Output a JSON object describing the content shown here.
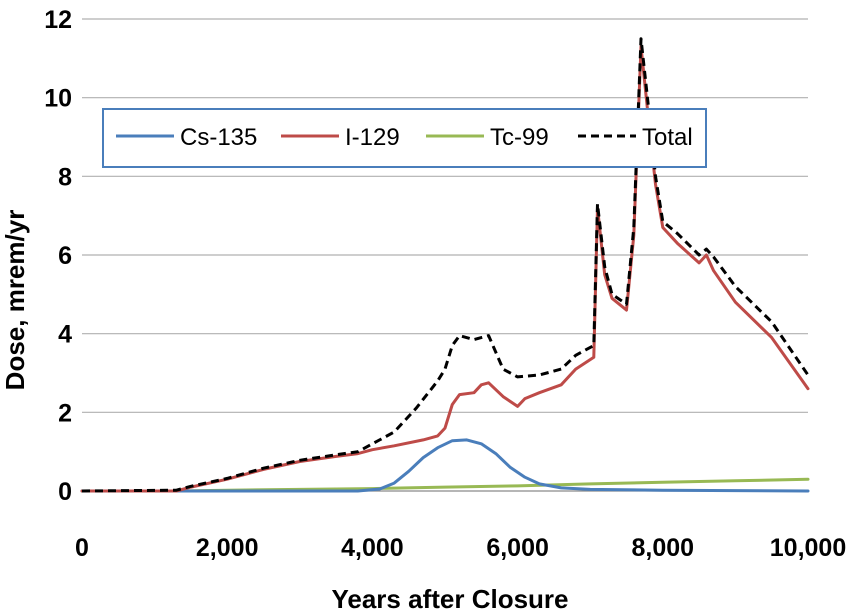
{
  "chart_data": {
    "type": "line",
    "title": "",
    "xlabel": "Years after Closure",
    "ylabel": "Dose, mrem/yr",
    "xlim": [
      0,
      10000
    ],
    "ylim": [
      0,
      12
    ],
    "grid": "horizontal",
    "legend_position": "top-left",
    "x_ticks": [
      0,
      2000,
      4000,
      6000,
      8000,
      10000
    ],
    "x_tick_labels": [
      "0",
      "2,000",
      "4,000",
      "6,000",
      "8,000",
      "10,000"
    ],
    "y_ticks": [
      0,
      2,
      4,
      6,
      8,
      10,
      12
    ],
    "y_tick_labels": [
      "0",
      "2",
      "4",
      "6",
      "8",
      "10",
      "12"
    ],
    "series": [
      {
        "name": "Cs-135",
        "color": "#4a7ebb",
        "dash": "solid",
        "points": [
          [
            0,
            0
          ],
          [
            3800,
            0
          ],
          [
            4100,
            0.05
          ],
          [
            4300,
            0.2
          ],
          [
            4500,
            0.5
          ],
          [
            4700,
            0.85
          ],
          [
            4900,
            1.1
          ],
          [
            5100,
            1.28
          ],
          [
            5300,
            1.3
          ],
          [
            5500,
            1.2
          ],
          [
            5700,
            0.95
          ],
          [
            5900,
            0.6
          ],
          [
            6100,
            0.35
          ],
          [
            6300,
            0.18
          ],
          [
            6600,
            0.08
          ],
          [
            7000,
            0.04
          ],
          [
            8000,
            0.02
          ],
          [
            9000,
            0.01
          ],
          [
            10000,
            0.0
          ]
        ]
      },
      {
        "name": "I-129",
        "color": "#be4b48",
        "dash": "solid",
        "points": [
          [
            0,
            0
          ],
          [
            1300,
            0.0
          ],
          [
            1500,
            0.1
          ],
          [
            2000,
            0.3
          ],
          [
            2500,
            0.55
          ],
          [
            3000,
            0.75
          ],
          [
            3500,
            0.88
          ],
          [
            3800,
            0.95
          ],
          [
            4000,
            1.05
          ],
          [
            4300,
            1.15
          ],
          [
            4700,
            1.3
          ],
          [
            4900,
            1.4
          ],
          [
            5000,
            1.6
          ],
          [
            5100,
            2.2
          ],
          [
            5200,
            2.45
          ],
          [
            5400,
            2.5
          ],
          [
            5500,
            2.7
          ],
          [
            5600,
            2.75
          ],
          [
            5800,
            2.4
          ],
          [
            6000,
            2.15
          ],
          [
            6100,
            2.35
          ],
          [
            6300,
            2.5
          ],
          [
            6600,
            2.7
          ],
          [
            6800,
            3.1
          ],
          [
            7050,
            3.4
          ],
          [
            7100,
            7.2
          ],
          [
            7200,
            5.5
          ],
          [
            7300,
            4.9
          ],
          [
            7500,
            4.6
          ],
          [
            7600,
            6.5
          ],
          [
            7700,
            11.3
          ],
          [
            7800,
            9.5
          ],
          [
            7900,
            7.8
          ],
          [
            8000,
            6.7
          ],
          [
            8200,
            6.3
          ],
          [
            8500,
            5.8
          ],
          [
            8600,
            6.0
          ],
          [
            8700,
            5.6
          ],
          [
            9000,
            4.8
          ],
          [
            9500,
            3.9
          ],
          [
            10000,
            2.6
          ]
        ]
      },
      {
        "name": "Tc-99",
        "color": "#98b954",
        "dash": "solid",
        "points": [
          [
            0,
            0
          ],
          [
            1300,
            0.0
          ],
          [
            2000,
            0.02
          ],
          [
            3000,
            0.04
          ],
          [
            4000,
            0.06
          ],
          [
            5000,
            0.1
          ],
          [
            6000,
            0.13
          ],
          [
            7000,
            0.18
          ],
          [
            8000,
            0.22
          ],
          [
            9000,
            0.26
          ],
          [
            10000,
            0.3
          ]
        ]
      },
      {
        "name": "Total",
        "color": "#000000",
        "dash": "dashed",
        "points": [
          [
            0,
            0
          ],
          [
            1300,
            0.02
          ],
          [
            1500,
            0.12
          ],
          [
            2000,
            0.32
          ],
          [
            2500,
            0.58
          ],
          [
            3000,
            0.78
          ],
          [
            3500,
            0.92
          ],
          [
            3800,
            1.0
          ],
          [
            4000,
            1.2
          ],
          [
            4300,
            1.5
          ],
          [
            4600,
            2.1
          ],
          [
            4900,
            2.8
          ],
          [
            5000,
            3.1
          ],
          [
            5100,
            3.7
          ],
          [
            5200,
            3.95
          ],
          [
            5400,
            3.85
          ],
          [
            5600,
            3.95
          ],
          [
            5800,
            3.1
          ],
          [
            6000,
            2.9
          ],
          [
            6300,
            2.95
          ],
          [
            6600,
            3.1
          ],
          [
            6800,
            3.45
          ],
          [
            7050,
            3.7
          ],
          [
            7100,
            7.3
          ],
          [
            7200,
            5.7
          ],
          [
            7300,
            5.0
          ],
          [
            7500,
            4.75
          ],
          [
            7600,
            6.7
          ],
          [
            7700,
            11.5
          ],
          [
            7800,
            9.8
          ],
          [
            7900,
            8.0
          ],
          [
            8000,
            6.85
          ],
          [
            8200,
            6.55
          ],
          [
            8500,
            6.0
          ],
          [
            8600,
            6.15
          ],
          [
            8700,
            5.95
          ],
          [
            9000,
            5.2
          ],
          [
            9500,
            4.3
          ],
          [
            10000,
            2.95
          ]
        ]
      }
    ]
  }
}
